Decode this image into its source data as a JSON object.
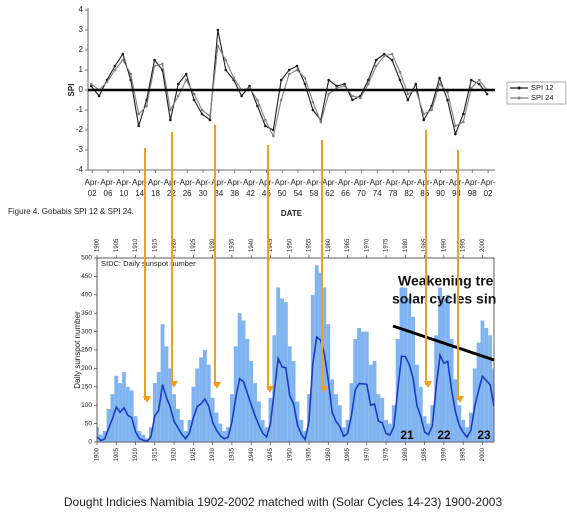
{
  "chart_data": [
    {
      "type": "line",
      "caption": "Figure 4.  Gobabis SPI 12 & SPI 24.",
      "xlabel": "DATE",
      "ylabel": "SPI",
      "x": [
        1902,
        1904,
        1906,
        1908,
        1910,
        1912,
        1914,
        1916,
        1918,
        1920,
        1922,
        1924,
        1926,
        1928,
        1930,
        1932,
        1934,
        1936,
        1938,
        1940,
        1942,
        1944,
        1946,
        1948,
        1950,
        1952,
        1954,
        1956,
        1958,
        1960,
        1962,
        1964,
        1966,
        1968,
        1970,
        1972,
        1974,
        1976,
        1978,
        1980,
        1982,
        1984,
        1986,
        1988,
        1990,
        1992,
        1994,
        1996,
        1998,
        2000,
        2002
      ],
      "series": [
        {
          "name": "SPI 12",
          "color": "#1a1a1a",
          "type": "line",
          "values": [
            0.2,
            -0.3,
            0.5,
            1.2,
            1.8,
            0.5,
            -1.8,
            -0.5,
            1.5,
            1.0,
            -1.5,
            0.3,
            0.8,
            -0.5,
            -1.2,
            -1.5,
            3.0,
            1.0,
            0.5,
            -0.3,
            0.2,
            -0.8,
            -1.8,
            -2.0,
            0.5,
            1.0,
            1.2,
            0.3,
            -1.0,
            -1.5,
            0.5,
            0.2,
            0.3,
            -0.5,
            -0.3,
            0.5,
            1.5,
            1.8,
            1.5,
            0.5,
            -0.5,
            0.3,
            -1.5,
            -0.8,
            0.6,
            -0.5,
            -2.2,
            -1.2,
            0.5,
            0.3,
            -0.2
          ]
        },
        {
          "name": "SPI 24",
          "color": "#808080",
          "type": "line",
          "values": [
            0.3,
            0,
            0.4,
            1.0,
            1.5,
            0.8,
            -1.2,
            -0.8,
            1.2,
            1.3,
            -1.0,
            -0.3,
            0.5,
            -0.2,
            -1.0,
            -1.3,
            2.2,
            1.5,
            0.6,
            0,
            0.1,
            -0.5,
            -1.5,
            -2.3,
            -0.5,
            0.8,
            1.0,
            0.6,
            -0.6,
            -1.6,
            -0.2,
            0.1,
            0.2,
            -0.3,
            -0.4,
            0.3,
            1.2,
            1.7,
            1.8,
            0.9,
            -0.2,
            0,
            -1.2,
            -1.0,
            0.3,
            -0.1,
            -1.8,
            -1.6,
            0.1,
            0.5,
            0
          ]
        }
      ],
      "xlim": [
        1901.2,
        2004
      ],
      "ylim": [
        -4,
        4
      ],
      "yticks": [
        4,
        3,
        2,
        1,
        0,
        -1,
        -2,
        -3,
        -4
      ],
      "xticks": [
        {
          "value": 1902.25,
          "label": "Apr-02"
        },
        {
          "value": 1906.25,
          "label": "Apr-06"
        },
        {
          "value": 1910.25,
          "label": "Apr-10"
        },
        {
          "value": 1914.25,
          "label": "Apr-14"
        },
        {
          "value": 1918.25,
          "label": "Apr-18"
        },
        {
          "value": 1922.25,
          "label": "Apr-22"
        },
        {
          "value": 1926.25,
          "label": "Apr-26"
        },
        {
          "value": 1930.25,
          "label": "Apr-30"
        },
        {
          "value": 1934.25,
          "label": "Apr-34"
        },
        {
          "value": 1938.25,
          "label": "Apr-38"
        },
        {
          "value": 1942.25,
          "label": "Apr-42"
        },
        {
          "value": 1946.25,
          "label": "Apr-46"
        },
        {
          "value": 1950.25,
          "label": "Apr-50"
        },
        {
          "value": 1954.25,
          "label": "Apr-54"
        },
        {
          "value": 1958.25,
          "label": "Apr-58"
        },
        {
          "value": 1962.25,
          "label": "Apr-62"
        },
        {
          "value": 1966.25,
          "label": "Apr-66"
        },
        {
          "value": 1970.25,
          "label": "Apr-70"
        },
        {
          "value": 1974.25,
          "label": "Apr-74"
        },
        {
          "value": 1978.25,
          "label": "Apr-78"
        },
        {
          "value": 1982.25,
          "label": "Apr-82"
        },
        {
          "value": 1986.25,
          "label": "Apr-86"
        },
        {
          "value": 1990.25,
          "label": "Apr-90"
        },
        {
          "value": 1994.25,
          "label": "Apr-94"
        },
        {
          "value": 1998.25,
          "label": "Apr-98"
        },
        {
          "value": 2002.25,
          "label": "Apr-02"
        }
      ],
      "legend": "right"
    },
    {
      "type": "line",
      "title": "SIDC: Daily sunspot number",
      "ylabel": "Daily sunspot number",
      "x": [
        1900,
        1901,
        1902,
        1903,
        1904,
        1905,
        1906,
        1907,
        1908,
        1909,
        1910,
        1911,
        1912,
        1913,
        1914,
        1915,
        1916,
        1917,
        1918,
        1919,
        1920,
        1921,
        1922,
        1923,
        1924,
        1925,
        1926,
        1927,
        1928,
        1929,
        1930,
        1931,
        1932,
        1933,
        1934,
        1935,
        1936,
        1937,
        1938,
        1939,
        1940,
        1941,
        1942,
        1943,
        1944,
        1945,
        1946,
        1947,
        1948,
        1949,
        1950,
        1951,
        1952,
        1953,
        1954,
        1955,
        1956,
        1957,
        1958,
        1959,
        1960,
        1961,
        1962,
        1963,
        1964,
        1965,
        1966,
        1967,
        1968,
        1969,
        1970,
        1971,
        1972,
        1973,
        1974,
        1975,
        1976,
        1977,
        1978,
        1979,
        1980,
        1981,
        1982,
        1983,
        1984,
        1985,
        1986,
        1987,
        1988,
        1989,
        1990,
        1991,
        1992,
        1993,
        1994,
        1995,
        1996,
        1997,
        1998,
        1999,
        2000,
        2001,
        2002,
        2003
      ],
      "series": [
        {
          "color": "#80b4f0",
          "type": "bar",
          "values": [
            40,
            20,
            30,
            90,
            130,
            180,
            160,
            190,
            150,
            140,
            70,
            30,
            20,
            10,
            40,
            160,
            190,
            320,
            260,
            200,
            130,
            90,
            60,
            30,
            60,
            150,
            200,
            230,
            250,
            210,
            120,
            80,
            50,
            30,
            40,
            130,
            260,
            350,
            330,
            280,
            220,
            160,
            110,
            60,
            40,
            120,
            290,
            420,
            390,
            380,
            260,
            220,
            110,
            60,
            30,
            130,
            400,
            480,
            460,
            420,
            320,
            170,
            130,
            100,
            40,
            60,
            160,
            280,
            310,
            300,
            300,
            210,
            220,
            130,
            120,
            60,
            50,
            100,
            280,
            420,
            420,
            390,
            340,
            210,
            150,
            70,
            50,
            100,
            290,
            420,
            390,
            400,
            280,
            170,
            100,
            60,
            40,
            80,
            200,
            270,
            330,
            310,
            290,
            200
          ]
        },
        {
          "color": "#1b3cc0",
          "type": "line",
          "values": [
            14,
            4,
            8,
            37,
            63,
            95,
            81,
            93,
            73,
            66,
            28,
            9,
            5,
            2,
            14,
            71,
            86,
            156,
            121,
            95,
            56,
            39,
            21,
            9,
            25,
            66,
            96,
            104,
            117,
            97,
            54,
            32,
            17,
            9,
            13,
            54,
            120,
            172,
            164,
            133,
            102,
            71,
            46,
            24,
            14,
            50,
            139,
            227,
            204,
            202,
            126,
            104,
            47,
            21,
            7,
            57,
            213,
            285,
            277,
            239,
            168,
            81,
            56,
            42,
            15,
            23,
            71,
            141,
            159,
            158,
            157,
            100,
            103,
            57,
            52,
            23,
            19,
            41,
            139,
            233,
            232,
            211,
            174,
            100,
            69,
            27,
            20,
            44,
            150,
            236,
            214,
            219,
            141,
            82,
            45,
            26,
            13,
            32,
            96,
            140,
            179,
            167,
            156,
            96
          ]
        }
      ],
      "xlim": [
        1900,
        2003
      ],
      "ylim": [
        0,
        500
      ],
      "yticks": [
        0,
        50,
        100,
        150,
        200,
        250,
        300,
        350,
        400,
        450,
        500
      ],
      "xticks": [
        1900,
        1905,
        1910,
        1915,
        1920,
        1925,
        1930,
        1935,
        1940,
        1945,
        1950,
        1955,
        1960,
        1965,
        1970,
        1975,
        1980,
        1985,
        1990,
        1995,
        2000
      ],
      "annotations": [
        "Weakening tre",
        "solar cycles sin"
      ],
      "cycle_labels": [
        "21",
        "22",
        "23"
      ]
    }
  ],
  "footer": {
    "caption": "Dought Indicies Namibia 1902-2002 matched with (Solar Cycles 14-23) 1900-2003"
  }
}
